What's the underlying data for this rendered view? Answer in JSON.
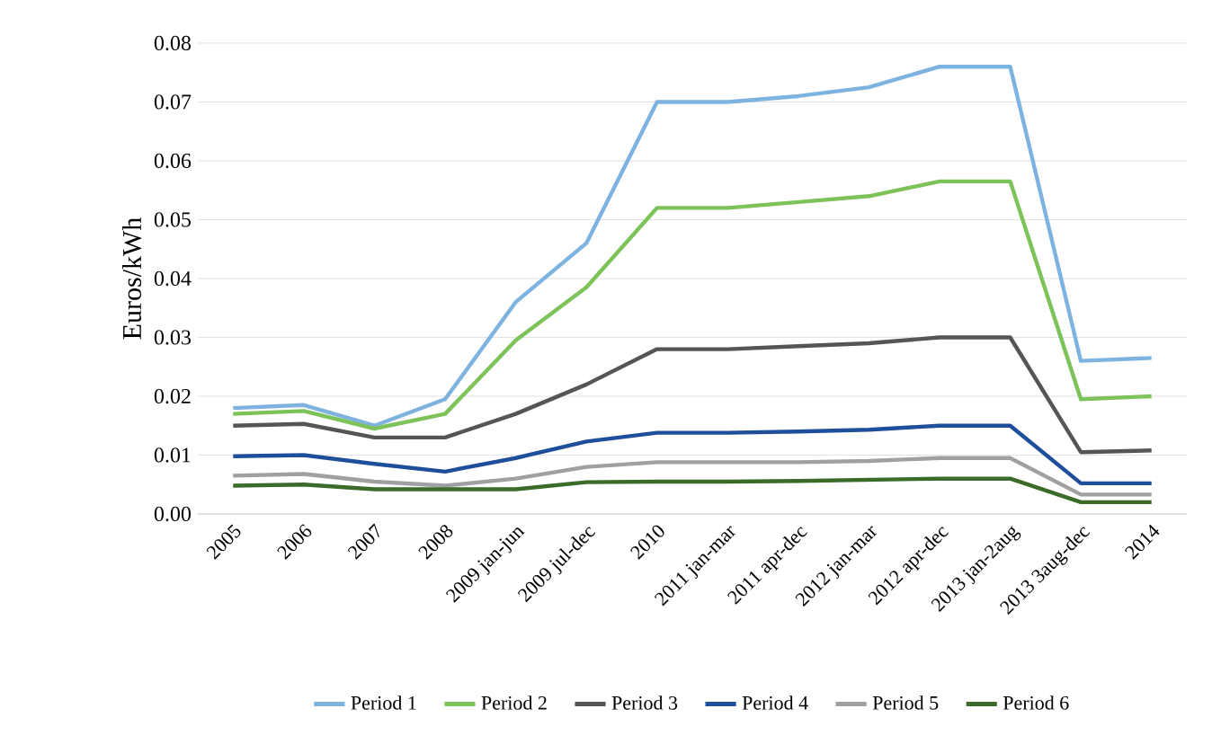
{
  "chart_data": {
    "type": "line",
    "ylabel": "Euros/kWh",
    "categories": [
      "2005",
      "2006",
      "2007",
      "2008",
      "2009 jan-jun",
      "2009 jul-dec",
      "2010",
      "2011 jan-mar",
      "2011 apr-dec",
      "2012 jan-mar",
      "2012 apr-dec",
      "2013 jan-2aug",
      "2013 3aug-dec",
      "2014"
    ],
    "series": [
      {
        "name": "Period 1",
        "color": "#7eb3e0",
        "values": [
          0.018,
          0.0185,
          0.015,
          0.0195,
          0.036,
          0.046,
          0.07,
          0.07,
          0.071,
          0.0725,
          0.076,
          0.076,
          0.026,
          0.0265
        ]
      },
      {
        "name": "Period 2",
        "color": "#7ec35a",
        "values": [
          0.017,
          0.0175,
          0.0145,
          0.017,
          0.0295,
          0.0385,
          0.052,
          0.052,
          0.053,
          0.054,
          0.0565,
          0.0565,
          0.0195,
          0.02
        ]
      },
      {
        "name": "Period 3",
        "color": "#555555",
        "values": [
          0.015,
          0.0153,
          0.013,
          0.013,
          0.017,
          0.022,
          0.028,
          0.028,
          0.0285,
          0.029,
          0.03,
          0.03,
          0.0105,
          0.0108
        ]
      },
      {
        "name": "Period 4",
        "color": "#1f4e9a",
        "values": [
          0.0098,
          0.01,
          0.0085,
          0.0072,
          0.0095,
          0.0123,
          0.0138,
          0.0138,
          0.014,
          0.0143,
          0.015,
          0.015,
          0.0052,
          0.0052
        ]
      },
      {
        "name": "Period 5",
        "color": "#a0a0a0",
        "values": [
          0.0065,
          0.0068,
          0.0055,
          0.0048,
          0.006,
          0.008,
          0.0088,
          0.0088,
          0.0088,
          0.009,
          0.0095,
          0.0095,
          0.0033,
          0.0033
        ]
      },
      {
        "name": "Period 6",
        "color": "#3a6b28",
        "values": [
          0.0048,
          0.005,
          0.0042,
          0.0042,
          0.0042,
          0.0054,
          0.0055,
          0.0055,
          0.0056,
          0.0058,
          0.006,
          0.006,
          0.002,
          0.002
        ]
      }
    ],
    "ylim": [
      0,
      0.08
    ],
    "yticks": [
      {
        "value": 0,
        "label": "0.00"
      },
      {
        "value": 0.01,
        "label": "0.01"
      },
      {
        "value": 0.02,
        "label": "0.02"
      },
      {
        "value": 0.03,
        "label": "0.03"
      },
      {
        "value": 0.04,
        "label": "0.04"
      },
      {
        "value": 0.05,
        "label": "0.05"
      },
      {
        "value": 0.06,
        "label": "0.06"
      },
      {
        "value": 0.07,
        "label": "0.07"
      },
      {
        "value": 0.08,
        "label": "0.08"
      }
    ],
    "grid": "y",
    "legend": "bottom",
    "marker": "none",
    "line_style": "solid"
  }
}
